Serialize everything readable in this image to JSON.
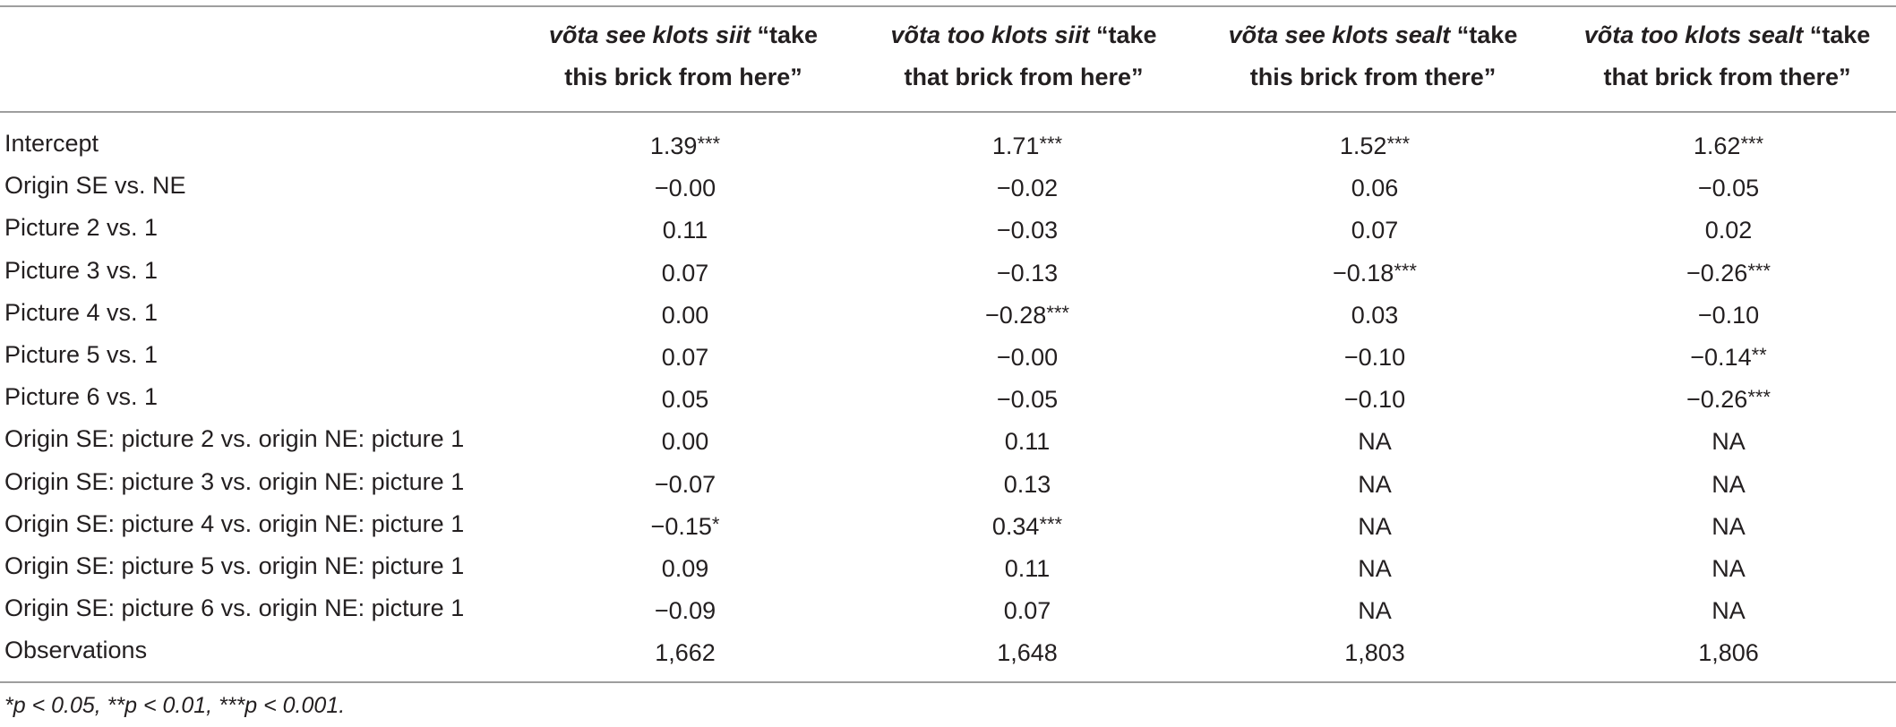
{
  "table": {
    "headers": [
      {
        "italic": "võta see klots siit",
        "rest_line1": " “take",
        "line2": "this brick from here”"
      },
      {
        "italic": "võta too klots siit",
        "rest_line1": " “take",
        "line2": "that brick from here”"
      },
      {
        "italic": "võta see klots sealt",
        "rest_line1": " “take",
        "line2": "this brick from there”"
      },
      {
        "italic": "võta too klots sealt",
        "rest_line1": " “take",
        "line2": "that brick from there”"
      }
    ],
    "rows": [
      {
        "label": "Intercept",
        "cells": [
          [
            "1.39",
            "***"
          ],
          [
            "1.71",
            "***"
          ],
          [
            "1.52",
            "***"
          ],
          [
            "1.62",
            "***"
          ]
        ]
      },
      {
        "label": "Origin SE vs. NE",
        "cells": [
          [
            "−0.00",
            ""
          ],
          [
            "−0.02",
            ""
          ],
          [
            "0.06",
            ""
          ],
          [
            "−0.05",
            ""
          ]
        ]
      },
      {
        "label": "Picture 2 vs. 1",
        "cells": [
          [
            "0.11",
            ""
          ],
          [
            "−0.03",
            ""
          ],
          [
            "0.07",
            ""
          ],
          [
            "0.02",
            ""
          ]
        ]
      },
      {
        "label": "Picture 3 vs. 1",
        "cells": [
          [
            "0.07",
            ""
          ],
          [
            "−0.13",
            ""
          ],
          [
            "−0.18",
            "***"
          ],
          [
            "−0.26",
            "***"
          ]
        ]
      },
      {
        "label": "Picture 4 vs. 1",
        "cells": [
          [
            "0.00",
            ""
          ],
          [
            "−0.28",
            "***"
          ],
          [
            "0.03",
            ""
          ],
          [
            "−0.10",
            ""
          ]
        ]
      },
      {
        "label": "Picture 5 vs. 1",
        "cells": [
          [
            "0.07",
            ""
          ],
          [
            "−0.00",
            ""
          ],
          [
            "−0.10",
            ""
          ],
          [
            "−0.14",
            "**"
          ]
        ]
      },
      {
        "label": "Picture 6 vs. 1",
        "cells": [
          [
            "0.05",
            ""
          ],
          [
            "−0.05",
            ""
          ],
          [
            "−0.10",
            ""
          ],
          [
            "−0.26",
            "***"
          ]
        ]
      },
      {
        "label": "Origin SE: picture 2 vs. origin NE: picture 1",
        "cells": [
          [
            "0.00",
            ""
          ],
          [
            "0.11",
            ""
          ],
          [
            "NA",
            ""
          ],
          [
            "NA",
            ""
          ]
        ]
      },
      {
        "label": "Origin SE: picture 3 vs. origin NE: picture 1",
        "cells": [
          [
            "−0.07",
            ""
          ],
          [
            "0.13",
            ""
          ],
          [
            "NA",
            ""
          ],
          [
            "NA",
            ""
          ]
        ]
      },
      {
        "label": "Origin SE: picture 4 vs. origin NE: picture 1",
        "cells": [
          [
            "−0.15",
            "*"
          ],
          [
            "0.34",
            "***"
          ],
          [
            "NA",
            ""
          ],
          [
            "NA",
            ""
          ]
        ]
      },
      {
        "label": "Origin SE: picture 5 vs. origin NE: picture 1",
        "cells": [
          [
            "0.09",
            ""
          ],
          [
            "0.11",
            ""
          ],
          [
            "NA",
            ""
          ],
          [
            "NA",
            ""
          ]
        ]
      },
      {
        "label": "Origin SE: picture 6 vs. origin NE: picture 1",
        "cells": [
          [
            "−0.09",
            ""
          ],
          [
            "0.07",
            ""
          ],
          [
            "NA",
            ""
          ],
          [
            "NA",
            ""
          ]
        ]
      },
      {
        "label": "Observations",
        "cells": [
          [
            "1,662",
            ""
          ],
          [
            "1,648",
            ""
          ],
          [
            "1,803",
            ""
          ],
          [
            "1,806",
            ""
          ]
        ]
      }
    ],
    "footnote": "*p < 0.05, **p < 0.01, ***p < 0.001."
  }
}
